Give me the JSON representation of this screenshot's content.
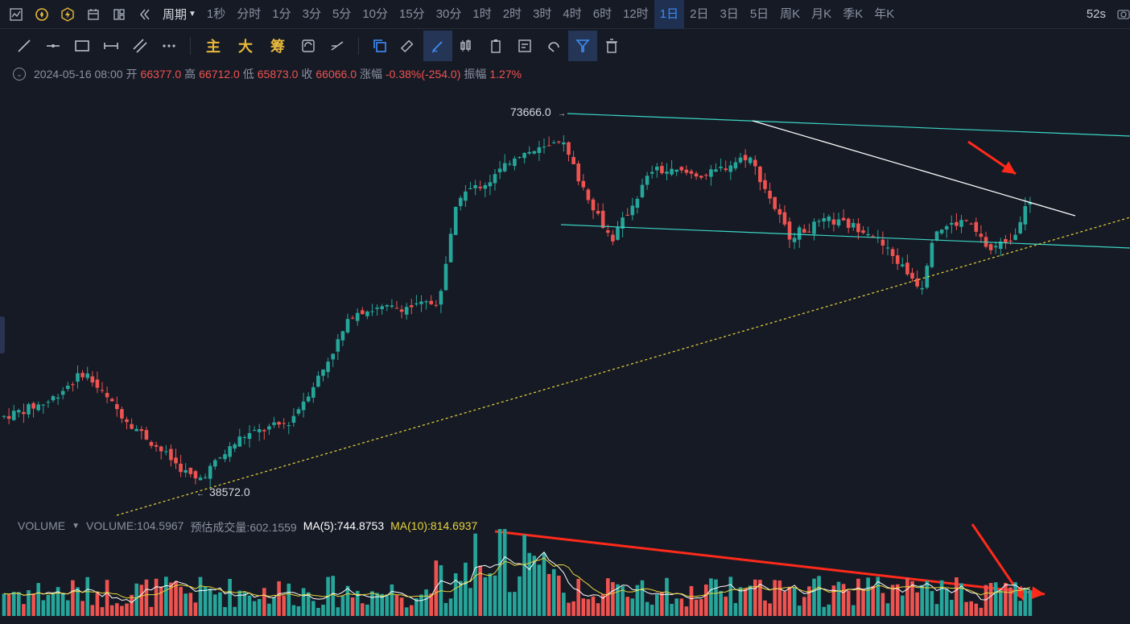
{
  "toolbar": {
    "icons": [
      "chart-icon",
      "compass-icon",
      "flash-icon",
      "calendar-icon",
      "layout-icon",
      "rewind-icon"
    ],
    "period_label": "周期",
    "periods": [
      "1秒",
      "分时",
      "1分",
      "3分",
      "5分",
      "10分",
      "15分",
      "30分",
      "1时",
      "2时",
      "3时",
      "4时",
      "6时",
      "12时",
      "1日",
      "2日",
      "3日",
      "5日",
      "周K",
      "月K",
      "季K",
      "年K"
    ],
    "active_period": "1日",
    "timer": "52s"
  },
  "drawing_tools": {
    "main": "主",
    "big": "大",
    "chips": "筹"
  },
  "ohlc": {
    "date": "2024-05-16 08:00",
    "open_label": "开",
    "open": "66377.0",
    "high_label": "高",
    "high": "66712.0",
    "low_label": "低",
    "low": "65873.0",
    "close_label": "收",
    "close": "66066.0",
    "change_label": "涨幅",
    "change": "-0.38%(-254.0)",
    "amp_label": "振幅",
    "amp": "1.27%"
  },
  "price_labels": {
    "high": "73666.0",
    "low": "38572.0"
  },
  "volume": {
    "title": "VOLUME",
    "value": "VOLUME:104.5967",
    "estimate": "预估成交量:602.1559",
    "ma5": "MA(5):744.8753",
    "ma10": "MA(10):814.6937"
  },
  "colors": {
    "up": "#26a69a",
    "down": "#ef5350",
    "channel": "#3bd6c6",
    "trend": "#ffffff",
    "support": "#e9d43a",
    "arrow": "#ff2a1a",
    "ma10": "#e9d43a"
  },
  "chart_data": {
    "type": "candlestick",
    "y_range": [
      36000,
      76000
    ],
    "annotated_high": 73666,
    "annotated_low": 38572,
    "last_close": 66066
  }
}
